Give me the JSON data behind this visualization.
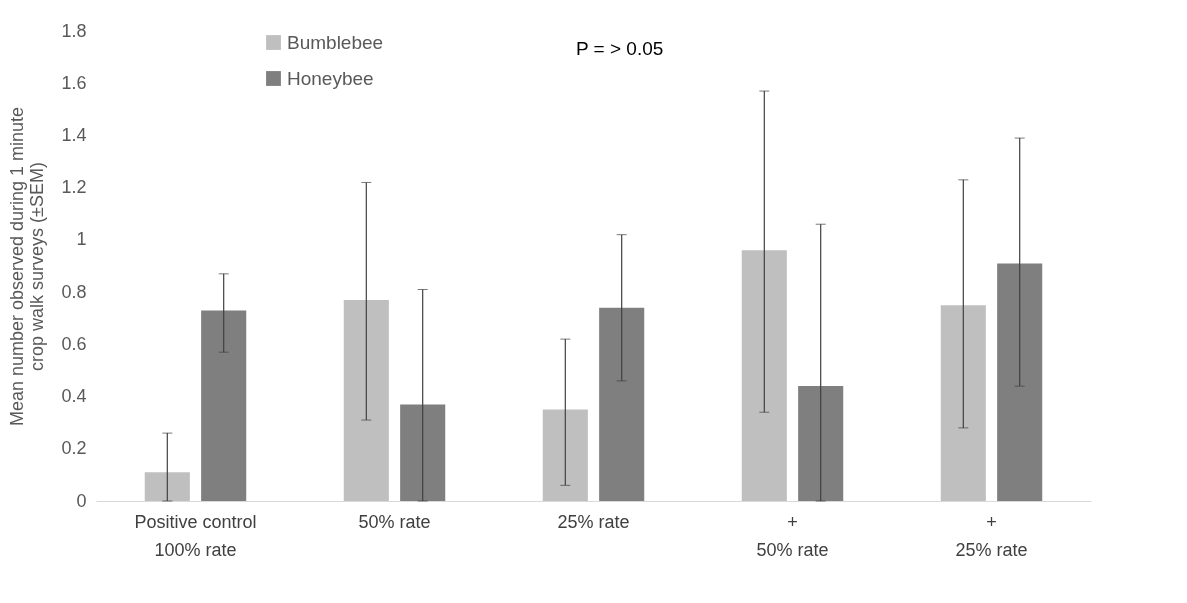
{
  "chart_data": {
    "type": "bar",
    "ylabel": "Mean number observed during 1 minute\ncrop walk surveys (±SEM)",
    "categories": [
      "Positive control\n100% rate",
      "50% rate",
      "25% rate",
      "+\n50% rate",
      "+\n25% rate"
    ],
    "series": [
      {
        "name": "Bumblebee",
        "color": "#bfbfbf",
        "values": [
          0.11,
          0.77,
          0.35,
          0.96,
          0.75
        ],
        "errors": [
          [
            0,
            0.26
          ],
          [
            0.31,
            1.22
          ],
          [
            0.06,
            0.62
          ],
          [
            0.34,
            1.57
          ],
          [
            0.28,
            1.23
          ]
        ]
      },
      {
        "name": "Honeybee",
        "color": "#7f7f7f",
        "values": [
          0.73,
          0.37,
          0.74,
          0.44,
          0.91
        ],
        "errors": [
          [
            0.57,
            0.87
          ],
          [
            0,
            0.81
          ],
          [
            0.46,
            1.02
          ],
          [
            0,
            1.06
          ],
          [
            0.44,
            1.39
          ]
        ]
      }
    ],
    "ylim": [
      0,
      1.8
    ],
    "yticks": [
      0,
      0.2,
      0.4,
      0.6,
      0.8,
      1,
      1.2,
      1.4,
      1.6,
      1.8
    ],
    "grid": false,
    "legend": "top left",
    "annotations": [
      "P = > 0.05"
    ]
  }
}
